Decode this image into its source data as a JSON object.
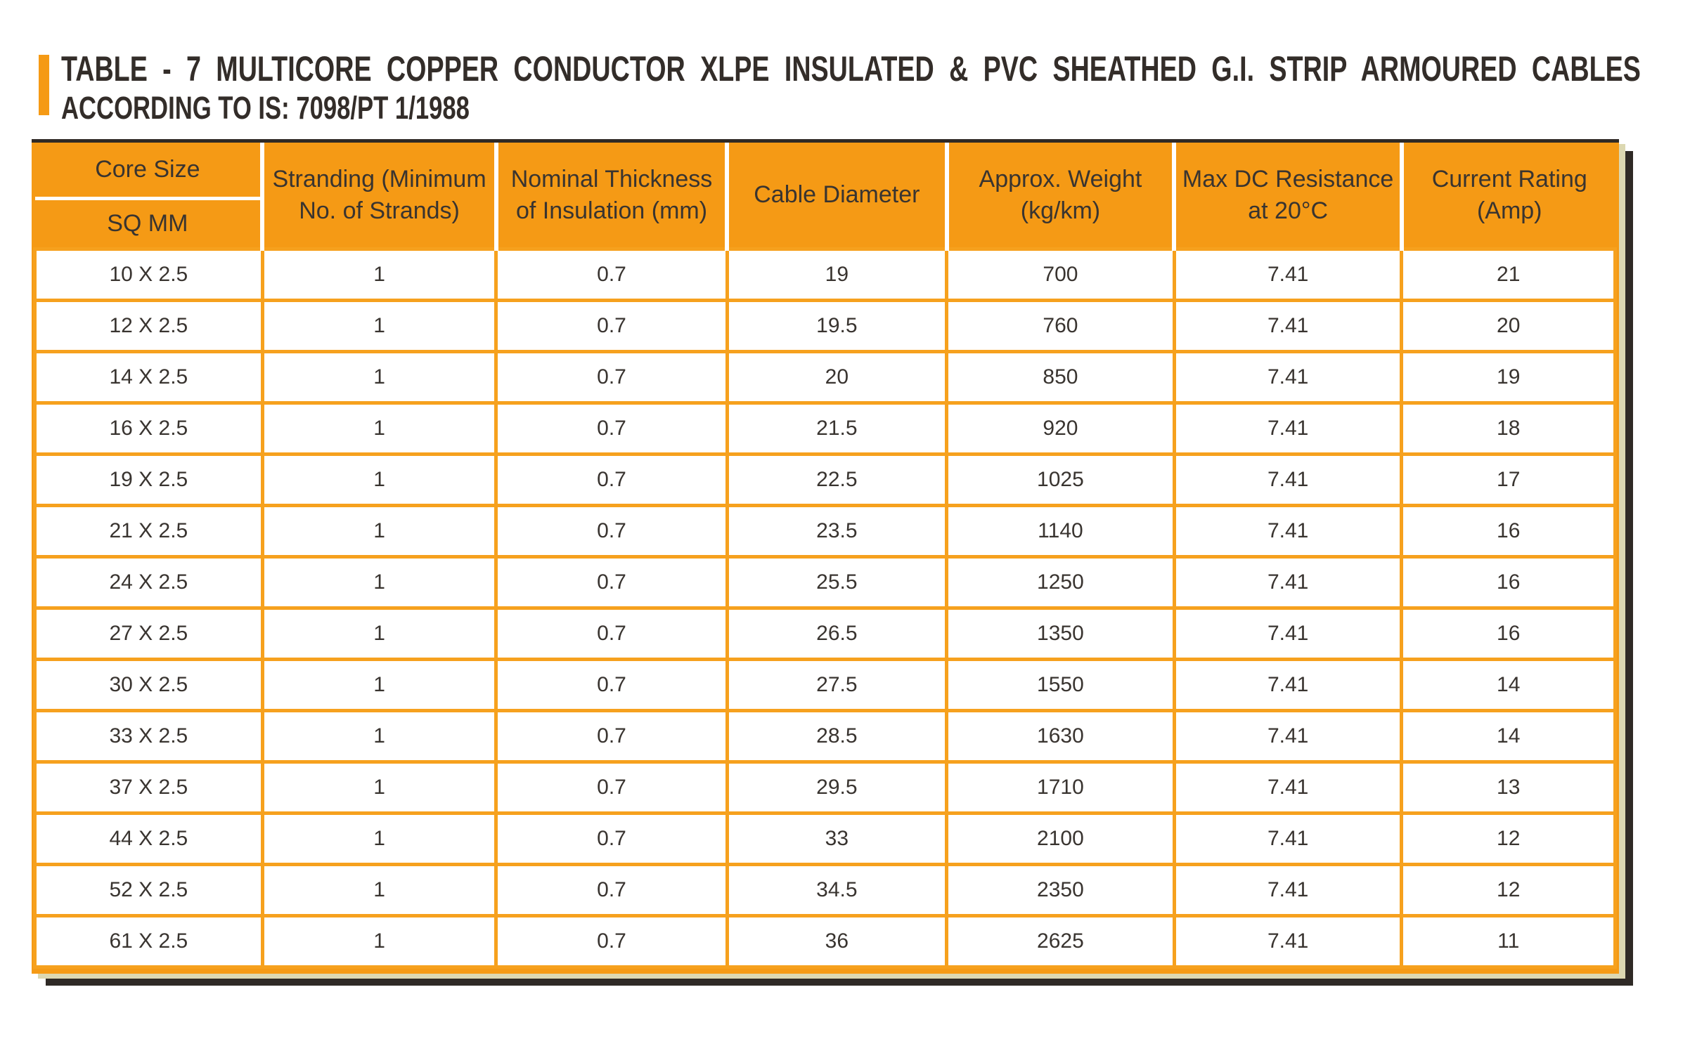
{
  "colors": {
    "orange": "#F59A15",
    "grid_orange": "#F6A11E",
    "shadow_dark": "#2F2A26",
    "shadow_beige": "#DCD8B2",
    "text_dark": "#393430",
    "title_text": "#332D29",
    "separator_white": "#FFFFFF",
    "page_background": "#FFFFFF"
  },
  "title": {
    "line1": "TABLE - 7 MULTICORE COPPER CONDUCTOR XLPE INSULATED & PVC SHEATHED G.I. STRIP ARMOURED CABLES",
    "line2": "ACCORDING TO IS: 7098/PT 1/1988"
  },
  "table": {
    "header": {
      "core_size_label": "Core Size",
      "core_size_unit": "SQ MM",
      "columns": [
        {
          "line1": "Stranding (Minimum",
          "line2": "No. of Strands)"
        },
        {
          "line1": "Nominal Thickness",
          "line2": "of Insulation (mm)"
        },
        {
          "line1": "Cable Diameter",
          "line2": ""
        },
        {
          "line1": "Approx. Weight",
          "line2": "(kg/km)"
        },
        {
          "line1": "Max DC Resistance",
          "line2": "at 20°C"
        },
        {
          "line1": "Current Rating",
          "line2": "(Amp)"
        }
      ]
    },
    "rows": [
      [
        "10 X 2.5",
        "1",
        "0.7",
        "19",
        "700",
        "7.41",
        "21"
      ],
      [
        "12 X 2.5",
        "1",
        "0.7",
        "19.5",
        "760",
        "7.41",
        "20"
      ],
      [
        "14 X 2.5",
        "1",
        "0.7",
        "20",
        "850",
        "7.41",
        "19"
      ],
      [
        "16 X 2.5",
        "1",
        "0.7",
        "21.5",
        "920",
        "7.41",
        "18"
      ],
      [
        "19 X 2.5",
        "1",
        "0.7",
        "22.5",
        "1025",
        "7.41",
        "17"
      ],
      [
        "21 X 2.5",
        "1",
        "0.7",
        "23.5",
        "1140",
        "7.41",
        "16"
      ],
      [
        "24 X 2.5",
        "1",
        "0.7",
        "25.5",
        "1250",
        "7.41",
        "16"
      ],
      [
        "27 X 2.5",
        "1",
        "0.7",
        "26.5",
        "1350",
        "7.41",
        "16"
      ],
      [
        "30 X 2.5",
        "1",
        "0.7",
        "27.5",
        "1550",
        "7.41",
        "14"
      ],
      [
        "33 X 2.5",
        "1",
        "0.7",
        "28.5",
        "1630",
        "7.41",
        "14"
      ],
      [
        "37 X 2.5",
        "1",
        "0.7",
        "29.5",
        "1710",
        "7.41",
        "13"
      ],
      [
        "44 X 2.5",
        "1",
        "0.7",
        "33",
        "2100",
        "7.41",
        "12"
      ],
      [
        "52 X 2.5",
        "1",
        "0.7",
        "34.5",
        "2350",
        "7.41",
        "12"
      ],
      [
        "61 X 2.5",
        "1",
        "0.7",
        "36",
        "2625",
        "7.41",
        "11"
      ]
    ]
  }
}
